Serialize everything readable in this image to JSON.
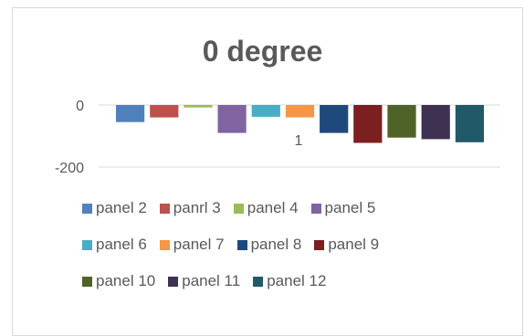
{
  "chart_data": {
    "type": "bar",
    "title": "0 degree",
    "categories": [
      "1"
    ],
    "ylim": [
      -200,
      0
    ],
    "yticks": [
      0,
      -200
    ],
    "grid": true,
    "legend_position": "bottom",
    "series": [
      {
        "name": "panel 2",
        "color": "#4F81BD",
        "values": [
          -55
        ]
      },
      {
        "name": "panrl 3",
        "color": "#C0504D",
        "values": [
          -40
        ]
      },
      {
        "name": "panel 4",
        "color": "#9BBB59",
        "values": [
          -8
        ]
      },
      {
        "name": "panel 5",
        "color": "#8064A2",
        "values": [
          -90
        ]
      },
      {
        "name": "panel 6",
        "color": "#4BACC6",
        "values": [
          -38
        ]
      },
      {
        "name": "panel 7",
        "color": "#F79646",
        "values": [
          -40
        ]
      },
      {
        "name": "panel 8",
        "color": "#1F497D",
        "values": [
          -90
        ]
      },
      {
        "name": "panel 9",
        "color": "#7B1F20",
        "values": [
          -122
        ]
      },
      {
        "name": "panel 10",
        "color": "#4F6228",
        "values": [
          -105
        ]
      },
      {
        "name": "panel 11",
        "color": "#3F3151",
        "values": [
          -110
        ]
      },
      {
        "name": "panel 12",
        "color": "#215968",
        "values": [
          -120
        ]
      }
    ]
  }
}
